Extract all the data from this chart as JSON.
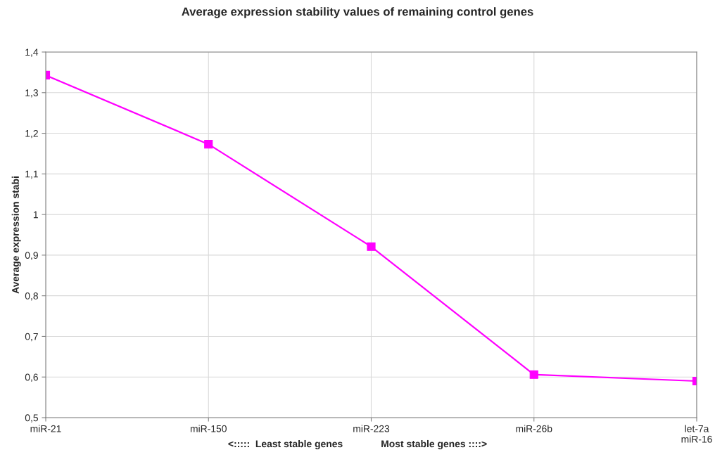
{
  "chart_data": {
    "type": "line",
    "title": "Average expression stability values of remaining control genes",
    "xlabel": "<:::::  Least stable genes              Most stable genes ::::>",
    "ylabel": "Average expression stabi",
    "categories": [
      "miR-21",
      "miR-150",
      "miR-223",
      "miR-26b",
      "let-7a\nmiR-16"
    ],
    "series": [
      {
        "color": "#ff00ff",
        "values": [
          1.343,
          1.173,
          0.921,
          0.606,
          0.59
        ]
      }
    ],
    "ylim": [
      0.5,
      1.4
    ],
    "yticks": [
      {
        "value": 0.5,
        "label": "0,5"
      },
      {
        "value": 0.6,
        "label": "0,6"
      },
      {
        "value": 0.7,
        "label": "0,7"
      },
      {
        "value": 0.8,
        "label": "0,8"
      },
      {
        "value": 0.9,
        "label": "0,9"
      },
      {
        "value": 1,
        "label": "1"
      },
      {
        "value": 1.1,
        "label": "1,1"
      },
      {
        "value": 1.2,
        "label": "1,2"
      },
      {
        "value": 1.3,
        "label": "1,3"
      },
      {
        "value": 1.4,
        "label": "1,4"
      }
    ],
    "grid": true,
    "marker": "square",
    "line_style": "solid",
    "legend": false
  }
}
